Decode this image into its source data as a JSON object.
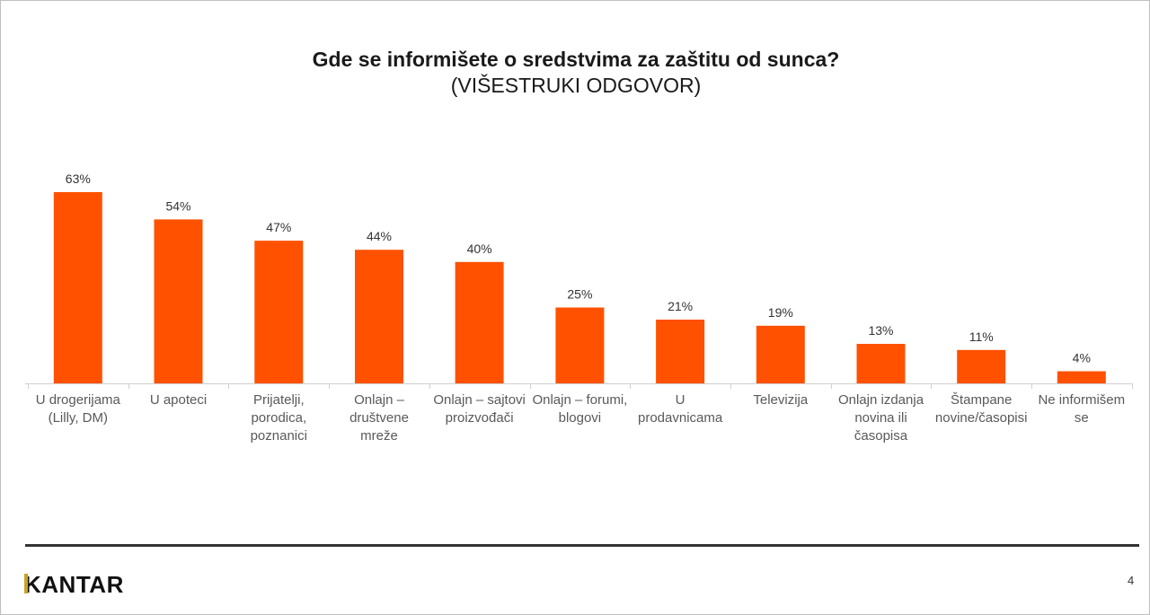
{
  "title": "Gde se informišete o sredstvima za zaštitu od sunca?",
  "subtitle": "(VIŠESTRUKI ODGOVOR)",
  "chart_data": {
    "type": "bar",
    "categories": [
      "U drogerijama (Lilly, DM)",
      "U apoteci",
      "Prijatelji, porodica, poznanici",
      "Onlajn – društvene mreže",
      "Onlajn – sajtovi proizvođači",
      "Onlajn – forumi, blogovi",
      "U prodavnicama",
      "Televizija",
      "Onlajn izdanja novina ili časopisa",
      "Štampane novine/časopisi",
      "Ne informišem se"
    ],
    "values": [
      63,
      54,
      47,
      44,
      40,
      25,
      21,
      19,
      13,
      11,
      4
    ],
    "value_labels": [
      "63%",
      "54%",
      "47%",
      "44%",
      "40%",
      "25%",
      "21%",
      "19%",
      "13%",
      "11%",
      "4%"
    ],
    "title": "Gde se informišete o sredstvima za zaštitu od sunca?",
    "subtitle": "(VIŠESTRUKI ODGOVOR)",
    "xlabel": "",
    "ylabel": "",
    "ylim": [
      0,
      63
    ],
    "grid": false,
    "bar_color": "#ff5100"
  },
  "footer": {
    "logo": "KANTAR",
    "logo_accent_color": "#c9a227",
    "page_number": "4"
  }
}
